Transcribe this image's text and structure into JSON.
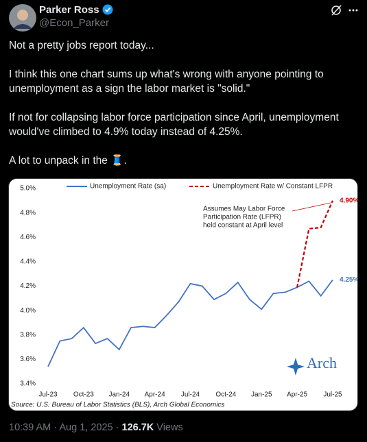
{
  "header": {
    "name": "Parker Ross",
    "handle": "@Econ_Parker"
  },
  "tweet": {
    "paragraphs": [
      [
        "Not a pretty jobs report today..."
      ],
      [
        "I think this one chart sums up what's wrong with anyone pointing to",
        "unemployment as a sign the labor market is \"solid.\""
      ],
      [
        "If not for collapsing labor force participation since April, unemployment",
        "would've climbed to 4.9% today instead of 4.25%."
      ],
      [
        "A lot to unpack in the 🧵."
      ]
    ]
  },
  "chart_data": {
    "type": "line",
    "categories": [
      "Jul-23",
      null,
      null,
      "Oct-23",
      null,
      null,
      "Jan-24",
      null,
      null,
      "Apr-24",
      null,
      null,
      "Jul-24",
      null,
      null,
      "Oct-24",
      null,
      null,
      "Jan-25",
      null,
      null,
      "Apr-25",
      null,
      null,
      "Jul-25"
    ],
    "series": [
      {
        "name": "Unemployment Rate (sa)",
        "color": "#4472c4",
        "values": [
          3.54,
          3.75,
          3.77,
          3.86,
          3.73,
          3.77,
          3.68,
          3.86,
          3.87,
          3.86,
          3.96,
          4.07,
          4.22,
          4.2,
          4.09,
          4.14,
          4.23,
          4.09,
          4.01,
          4.14,
          4.15,
          4.19,
          4.24,
          4.12,
          4.25
        ],
        "value_labels": [
          null,
          null,
          null,
          null,
          null,
          null,
          null,
          null,
          null,
          null,
          null,
          null,
          null,
          null,
          null,
          null,
          null,
          null,
          null,
          null,
          null,
          null,
          null,
          null,
          "4.25%"
        ]
      },
      {
        "name": "Unemployment Rate w/ Constant LFPR",
        "color": "#c00000",
        "dashed": true,
        "values": [
          null,
          null,
          null,
          null,
          null,
          null,
          null,
          null,
          null,
          null,
          null,
          null,
          null,
          null,
          null,
          null,
          null,
          null,
          null,
          null,
          null,
          4.19,
          4.67,
          4.68,
          4.9
        ],
        "value_labels": [
          null,
          null,
          null,
          null,
          null,
          null,
          null,
          null,
          null,
          null,
          null,
          null,
          null,
          null,
          null,
          null,
          null,
          null,
          null,
          null,
          null,
          null,
          null,
          null,
          "4.90%"
        ]
      }
    ],
    "ylim": [
      3.4,
      5.0
    ],
    "yticks": [
      {
        "value": 3.4,
        "label": "3.4%"
      },
      {
        "value": 3.6,
        "label": "3.6%"
      },
      {
        "value": 3.8,
        "label": "3.8%"
      },
      {
        "value": 4.0,
        "label": "4.0%"
      },
      {
        "value": 4.2,
        "label": "4.2%"
      },
      {
        "value": 4.4,
        "label": "4.4%"
      },
      {
        "value": 4.6,
        "label": "4.6%"
      },
      {
        "value": 4.8,
        "label": "4.8%"
      },
      {
        "value": 5.0,
        "label": "5.0%"
      }
    ],
    "annotation": [
      "Assumes May Labor Force",
      "Participation Rate (LFPR)",
      "held constant at April level"
    ],
    "source": "Source: U.S. Bureau of Labor Statistics (BLS), Arch Global Economics",
    "logo": "Arch"
  },
  "footer": {
    "time": "10:39 AM",
    "separator": "·",
    "date": "Aug 1, 2025",
    "views": "126.7K",
    "views_label": "Views"
  }
}
